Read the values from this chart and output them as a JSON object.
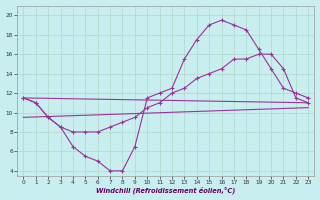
{
  "xlabel": "Windchill (Refroidissement éolien,°C)",
  "background_color": "#c8eef0",
  "grid_color": "#b0d8c8",
  "line_color": "#993399",
  "xlim": [
    -0.5,
    23.5
  ],
  "ylim": [
    3.5,
    21
  ],
  "xticks": [
    0,
    1,
    2,
    3,
    4,
    5,
    6,
    7,
    8,
    9,
    10,
    11,
    12,
    13,
    14,
    15,
    16,
    17,
    18,
    19,
    20,
    21,
    22,
    23
  ],
  "yticks": [
    4,
    6,
    8,
    10,
    12,
    14,
    16,
    18,
    20
  ],
  "curve1_x": [
    0,
    1,
    2,
    3,
    4,
    5,
    6,
    7,
    8,
    9,
    10,
    11,
    12,
    13,
    14,
    15,
    16,
    17,
    18,
    19,
    20,
    21,
    22,
    23
  ],
  "curve1_y": [
    11.5,
    11.0,
    9.5,
    8.5,
    6.5,
    5.5,
    5.0,
    4.0,
    4.0,
    6.5,
    11.5,
    12.0,
    12.5,
    15.5,
    17.5,
    19.0,
    19.5,
    19.0,
    18.5,
    16.5,
    14.5,
    12.5,
    12.0,
    11.5
  ],
  "curve2_x": [
    0,
    1,
    2,
    3,
    4,
    5,
    6,
    7,
    8,
    9,
    10,
    11,
    12,
    13,
    14,
    15,
    16,
    17,
    18,
    19,
    20,
    21,
    22,
    23
  ],
  "curve2_y": [
    11.5,
    11.0,
    9.5,
    8.5,
    8.0,
    8.0,
    8.0,
    8.5,
    9.0,
    9.5,
    10.5,
    11.0,
    12.0,
    12.5,
    13.5,
    14.0,
    14.5,
    15.5,
    15.5,
    16.0,
    16.0,
    14.5,
    11.5,
    11.0
  ],
  "line1_x": [
    0,
    23
  ],
  "line1_y": [
    11.5,
    11.0
  ],
  "line2_x": [
    0,
    23
  ],
  "line2_y": [
    9.5,
    10.5
  ]
}
